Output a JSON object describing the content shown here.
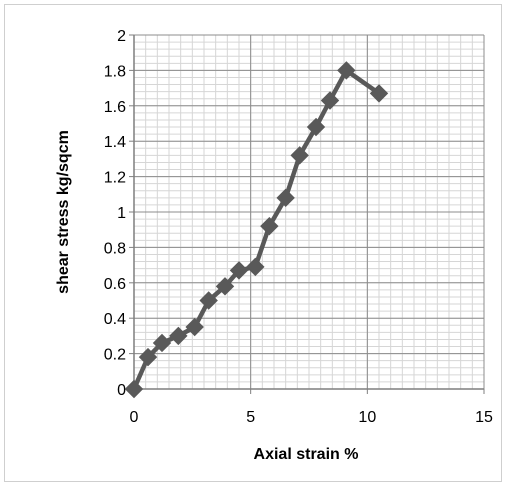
{
  "chart_data": {
    "type": "scatter",
    "title": "",
    "xlabel": "Axial strain  %",
    "ylabel": "shear stress kg/sqcm",
    "xlim": [
      0,
      15
    ],
    "ylim": [
      0,
      2
    ],
    "x_ticks": [
      "0",
      "5",
      "10",
      "15"
    ],
    "y_ticks": [
      "0",
      "0.2",
      "0.4",
      "0.6",
      "0.8",
      "1",
      "1.2",
      "1.4",
      "1.6",
      "1.8",
      "2"
    ],
    "grid": true,
    "minor_grid": true,
    "legend": "none",
    "marker": "diamond",
    "line": "straight lines with markers",
    "color": "#595959",
    "series": [
      {
        "x": [
          0.0,
          0.6,
          1.2,
          1.9,
          2.6,
          3.2,
          3.9,
          4.5,
          5.2,
          5.8,
          6.5,
          7.1,
          7.8,
          8.4,
          9.1,
          10.5
        ],
        "y": [
          0.0,
          0.18,
          0.26,
          0.3,
          0.35,
          0.5,
          0.58,
          0.67,
          0.69,
          0.92,
          1.08,
          1.32,
          1.48,
          1.63,
          1.8,
          1.67
        ]
      }
    ]
  }
}
